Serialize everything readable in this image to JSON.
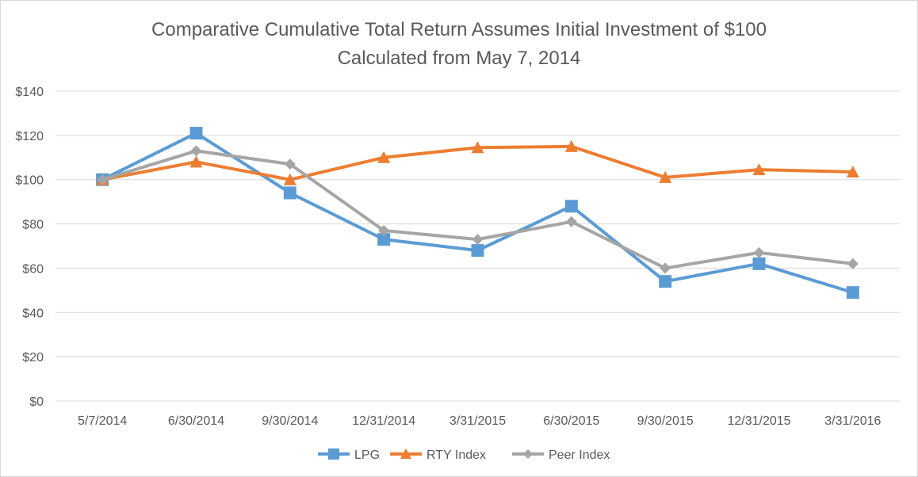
{
  "chart_data": {
    "type": "line",
    "title": "Comparative Cumulative Total Return Assumes Initial Investment of $100",
    "subtitle": "Calculated from May 7, 2014",
    "categories": [
      "5/7/2014",
      "6/30/2014",
      "9/30/2014",
      "12/31/2014",
      "3/31/2015",
      "6/30/2015",
      "9/30/2015",
      "12/31/2015",
      "3/31/2016"
    ],
    "ylim": [
      0,
      140
    ],
    "y_ticks": [
      "$0",
      "$20",
      "$40",
      "$60",
      "$80",
      "$100",
      "$120",
      "$140"
    ],
    "grid": true,
    "legend_position": "bottom",
    "series": [
      {
        "name": "LPG",
        "color": "#5b9bd5",
        "marker": "square",
        "values": [
          100,
          121,
          94,
          73,
          68,
          88,
          54,
          62,
          49
        ]
      },
      {
        "name": "RTY Index",
        "color": "#ed7d31",
        "marker": "triangle",
        "values": [
          100,
          108,
          100,
          110,
          114.5,
          115,
          101,
          104.5,
          103.5
        ]
      },
      {
        "name": "Peer Index",
        "color": "#a5a5a5",
        "marker": "diamond",
        "values": [
          100,
          113,
          107,
          77,
          73,
          81,
          60,
          67,
          62
        ]
      }
    ]
  }
}
